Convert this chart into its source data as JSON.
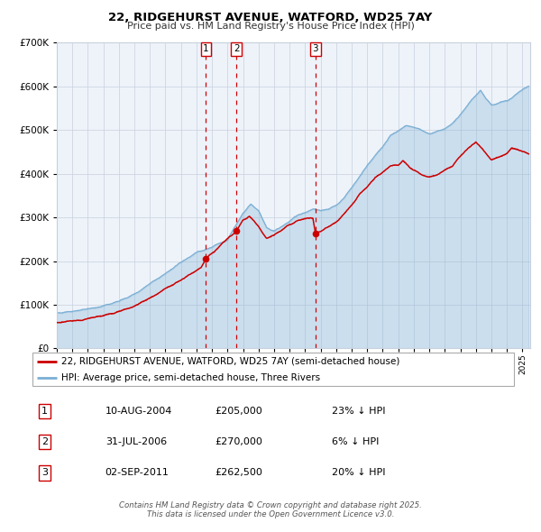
{
  "title": "22, RIDGEHURST AVENUE, WATFORD, WD25 7AY",
  "subtitle": "Price paid vs. HM Land Registry's House Price Index (HPI)",
  "legend_line1": "22, RIDGEHURST AVENUE, WATFORD, WD25 7AY (semi-detached house)",
  "legend_line2": "HPI: Average price, semi-detached house, Three Rivers",
  "red_color": "#cc0000",
  "blue_color": "#7bafd4",
  "blue_fill_alpha": 0.3,
  "background_color": "#eef3fa",
  "grid_color": "#c8d0dc",
  "vline_color": "#cc0000",
  "sale_years": [
    2004.61,
    2006.58,
    2011.67
  ],
  "sale_prices": [
    205000,
    270000,
    262500
  ],
  "sale_labels": [
    "1",
    "2",
    "3"
  ],
  "table_data": [
    [
      "1",
      "10-AUG-2004",
      "£205,000",
      "23% ↓ HPI"
    ],
    [
      "2",
      "31-JUL-2006",
      "£270,000",
      "6% ↓ HPI"
    ],
    [
      "3",
      "02-SEP-2011",
      "£262,500",
      "20% ↓ HPI"
    ]
  ],
  "footer_line1": "Contains HM Land Registry data © Crown copyright and database right 2025.",
  "footer_line2": "This data is licensed under the Open Government Licence v3.0.",
  "ylim": [
    0,
    700000
  ],
  "xlim_start": 1995.0,
  "xlim_end": 2025.5,
  "hpi_anchors_years": [
    1995.0,
    1996.0,
    1997.0,
    1998.0,
    1999.0,
    2000.0,
    2001.0,
    2002.0,
    2003.0,
    2004.0,
    2005.0,
    2006.0,
    2007.0,
    2007.5,
    2008.0,
    2008.5,
    2009.0,
    2009.5,
    2010.0,
    2010.5,
    2011.0,
    2011.5,
    2012.0,
    2012.5,
    2013.0,
    2013.5,
    2014.0,
    2014.5,
    2015.0,
    2015.5,
    2016.0,
    2016.5,
    2017.0,
    2017.5,
    2018.0,
    2018.5,
    2019.0,
    2019.5,
    2020.0,
    2020.5,
    2021.0,
    2021.5,
    2022.0,
    2022.3,
    2022.6,
    2023.0,
    2023.5,
    2024.0,
    2024.5,
    2025.0,
    2025.4
  ],
  "hpi_anchors_vals": [
    82000,
    85000,
    90000,
    97000,
    108000,
    125000,
    148000,
    172000,
    197000,
    218000,
    232000,
    248000,
    310000,
    330000,
    315000,
    278000,
    268000,
    278000,
    290000,
    305000,
    312000,
    318000,
    315000,
    318000,
    328000,
    345000,
    368000,
    393000,
    418000,
    442000,
    462000,
    488000,
    498000,
    510000,
    507000,
    498000,
    492000,
    497000,
    502000,
    515000,
    535000,
    558000,
    580000,
    590000,
    572000,
    558000,
    562000,
    568000,
    578000,
    593000,
    600000
  ],
  "pp_anchors_years": [
    1995.0,
    1996.0,
    1997.0,
    1998.0,
    1999.0,
    2000.0,
    2001.0,
    2002.0,
    2003.0,
    2004.3,
    2004.61,
    2005.3,
    2006.0,
    2006.4,
    2006.58,
    2007.0,
    2007.4,
    2008.0,
    2008.5,
    2009.0,
    2009.5,
    2010.0,
    2010.5,
    2011.0,
    2011.5,
    2011.67,
    2012.0,
    2012.5,
    2013.0,
    2013.5,
    2014.0,
    2014.5,
    2015.0,
    2015.5,
    2016.0,
    2016.5,
    2017.0,
    2017.3,
    2017.7,
    2018.0,
    2018.5,
    2019.0,
    2019.5,
    2020.0,
    2020.5,
    2021.0,
    2021.5,
    2022.0,
    2022.3,
    2022.7,
    2023.0,
    2023.5,
    2024.0,
    2024.3,
    2024.7,
    2025.0,
    2025.4
  ],
  "pp_anchors_vals": [
    60000,
    63000,
    68000,
    75000,
    84000,
    97000,
    115000,
    136000,
    158000,
    185000,
    205000,
    228000,
    252000,
    262000,
    270000,
    295000,
    303000,
    280000,
    252000,
    260000,
    272000,
    283000,
    292000,
    297000,
    299000,
    262500,
    268000,
    278000,
    290000,
    308000,
    328000,
    352000,
    370000,
    390000,
    403000,
    418000,
    420000,
    430000,
    415000,
    408000,
    398000,
    393000,
    398000,
    408000,
    418000,
    440000,
    458000,
    472000,
    462000,
    445000,
    432000,
    438000,
    448000,
    460000,
    455000,
    450000,
    445000
  ]
}
